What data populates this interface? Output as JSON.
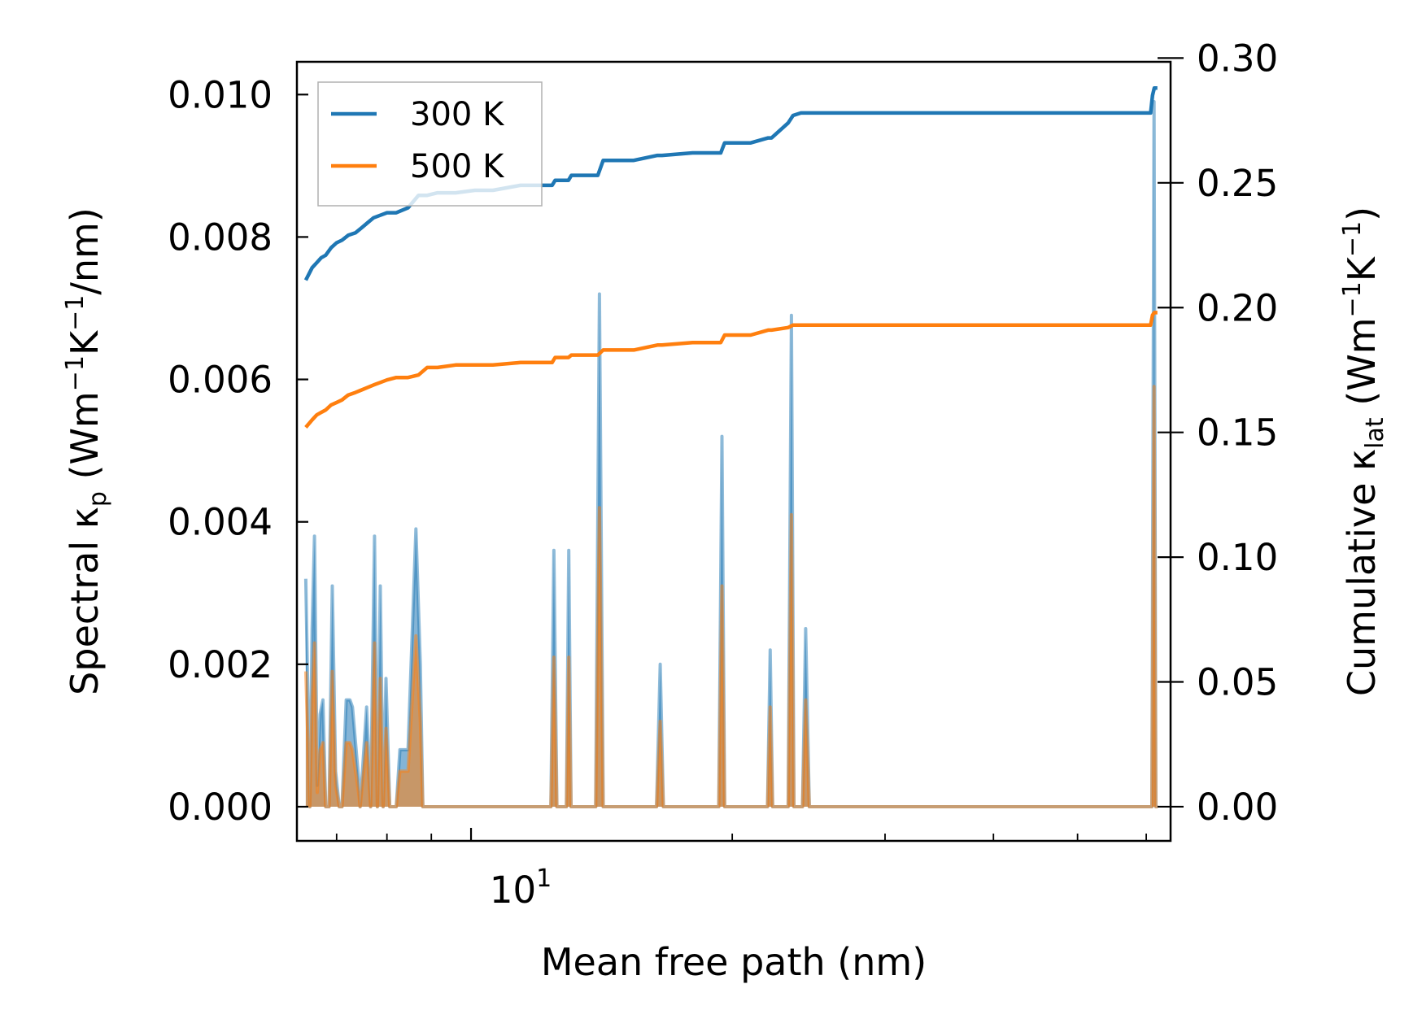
{
  "colors": {
    "series_300": "#1f77b4",
    "series_500": "#ff7f0e",
    "axis": "#000000",
    "legend_border": "#b0b0b0"
  },
  "chart_data": {
    "type": "line",
    "x_scale": "log",
    "xlim": [
      6.3,
      64
    ],
    "xlabel": "Mean free path (nm)",
    "xticks": [
      {
        "value": 10,
        "label": "10",
        "exponent": "1"
      }
    ],
    "ylabel_left": {
      "pre": "Spectral κ",
      "sub": "p",
      "post": " (Wm",
      "sup1": "−1",
      "mid": "K",
      "sup2": "−1",
      "end": "/nm)"
    },
    "ylabel_right": {
      "pre": "Cumulative κ",
      "sub": "lat",
      "post": " (Wm",
      "sup1": "−1",
      "mid": "K",
      "sup2": "−1",
      "end": ")"
    },
    "ylim_left": [
      -0.00048,
      0.01046
    ],
    "ylim_right": [
      -0.0137,
      0.2985
    ],
    "yticks_left": [
      "0.000",
      "0.002",
      "0.004",
      "0.006",
      "0.008",
      "0.010"
    ],
    "yticks_right": [
      "0.00",
      "0.05",
      "0.10",
      "0.15",
      "0.20",
      "0.25",
      "0.30"
    ],
    "legend": {
      "position": "top-left",
      "entries": [
        "300 K",
        "500 K"
      ]
    },
    "spectral_x": [
      6.45,
      6.52,
      6.56,
      6.6,
      6.65,
      6.7,
      6.75,
      6.8,
      6.86,
      6.92,
      6.98,
      7.05,
      7.1,
      7.18,
      7.25,
      7.3,
      7.42,
      7.45,
      7.58,
      7.66,
      7.74,
      7.8,
      7.86,
      7.92,
      7.98,
      8.06,
      8.14,
      8.2,
      8.28,
      8.46,
      8.64,
      8.74,
      8.8,
      8.86,
      8.9,
      8.98,
      9.08,
      9.16,
      9.26,
      9.8,
      10.08,
      10.22,
      10.34,
      12.36,
      12.46,
      12.56,
      12.88,
      12.96,
      13.04,
      13.92,
      14.06,
      14.2,
      16.36,
      16.52,
      16.66,
      19.3,
      19.46,
      19.6,
      21.96,
      22.12,
      22.26,
      23.2,
      23.4,
      23.56,
      24.1,
      24.3,
      24.54,
      60.9,
      61.25,
      61.55,
      61.85
    ],
    "spectral_300": [
      0.0032,
      0.0,
      0.0025,
      0.0038,
      0.0003,
      0.0013,
      0.0015,
      0.0,
      0.0,
      0.0031,
      0.0005,
      0.0,
      0.0,
      0.0015,
      0.0015,
      0.0014,
      0.0004,
      0.0,
      0.0014,
      0.0,
      0.0038,
      0.0,
      0.0031,
      0.0,
      0.0018,
      0.0,
      0.0,
      0.0,
      0.0008,
      0.0008,
      0.0039,
      0.002,
      0.0,
      0.0,
      0.0,
      0.0,
      0.0,
      0.0,
      0.0,
      0.0,
      0.0,
      0.0,
      0.0,
      0.0,
      0.0036,
      0.0,
      0.0,
      0.0036,
      0.0,
      0.0,
      0.0072,
      0.0,
      0.0,
      0.002,
      0.0,
      0.0,
      0.0052,
      0.0,
      0.0,
      0.0022,
      0.0,
      0.0,
      0.0069,
      0.0,
      0.0,
      0.0025,
      0.0,
      0.0,
      0.0099,
      0.0,
      0.0
    ],
    "spectral_500": [
      0.0019,
      0.0,
      0.0015,
      0.0023,
      0.0002,
      0.0008,
      0.0009,
      0.0,
      0.0,
      0.0019,
      0.0003,
      0.0,
      0.0,
      0.0009,
      0.0009,
      0.0008,
      0.0002,
      0.0,
      0.0009,
      0.0,
      0.0023,
      0.0,
      0.0018,
      0.0,
      0.0011,
      0.0,
      0.0,
      0.0,
      0.0005,
      0.0005,
      0.0024,
      0.0012,
      0.0,
      0.0,
      0.0,
      0.0,
      0.0,
      0.0,
      0.0,
      0.0,
      0.0,
      0.0,
      0.0,
      0.0,
      0.0021,
      0.0,
      0.0,
      0.0021,
      0.0,
      0.0,
      0.0042,
      0.0,
      0.0,
      0.0012,
      0.0,
      0.0,
      0.0031,
      0.0,
      0.0,
      0.0014,
      0.0,
      0.0,
      0.0041,
      0.0,
      0.0,
      0.0015,
      0.0,
      0.0,
      0.0059,
      0.0,
      0.0
    ],
    "cumulative_x": [
      6.45,
      6.56,
      6.64,
      6.72,
      6.8,
      6.9,
      7.0,
      7.1,
      7.22,
      7.36,
      7.48,
      7.6,
      7.72,
      7.86,
      8.0,
      8.2,
      8.46,
      8.7,
      8.9,
      9.15,
      9.6,
      10.1,
      10.6,
      11.4,
      12.4,
      12.5,
      12.95,
      13.05,
      14.0,
      14.2,
      15.4,
      16.4,
      16.6,
      18.0,
      19.4,
      19.6,
      21.0,
      22.0,
      22.2,
      23.2,
      23.5,
      24.0,
      24.6,
      30.0,
      40.0,
      50.0,
      60.7,
      61.0,
      61.3,
      61.8
    ],
    "cumulative_300": [
      0.211,
      0.216,
      0.218,
      0.22,
      0.221,
      0.224,
      0.226,
      0.227,
      0.229,
      0.23,
      0.232,
      0.234,
      0.236,
      0.237,
      0.238,
      0.238,
      0.24,
      0.245,
      0.245,
      0.246,
      0.246,
      0.247,
      0.247,
      0.249,
      0.249,
      0.251,
      0.251,
      0.253,
      0.253,
      0.259,
      0.259,
      0.261,
      0.261,
      0.262,
      0.262,
      0.266,
      0.266,
      0.268,
      0.268,
      0.274,
      0.277,
      0.278,
      0.278,
      0.278,
      0.278,
      0.278,
      0.278,
      0.285,
      0.288,
      0.288
    ],
    "cumulative_500": [
      0.152,
      0.155,
      0.157,
      0.158,
      0.159,
      0.161,
      0.162,
      0.163,
      0.165,
      0.166,
      0.167,
      0.168,
      0.169,
      0.17,
      0.171,
      0.172,
      0.172,
      0.173,
      0.176,
      0.176,
      0.177,
      0.177,
      0.177,
      0.178,
      0.178,
      0.18,
      0.18,
      0.181,
      0.181,
      0.183,
      0.183,
      0.185,
      0.185,
      0.186,
      0.186,
      0.189,
      0.189,
      0.191,
      0.191,
      0.192,
      0.193,
      0.193,
      0.193,
      0.193,
      0.193,
      0.193,
      0.193,
      0.197,
      0.198,
      0.198
    ]
  }
}
